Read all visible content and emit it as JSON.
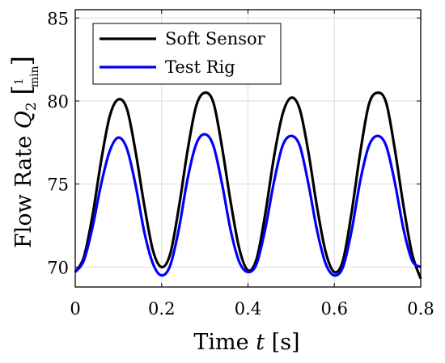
{
  "chart_data": {
    "type": "line",
    "title": "",
    "xlabel": "Time t [s]",
    "ylabel": "Flow Rate Q2 [l/min]",
    "xlim": [
      0,
      0.8
    ],
    "ylim": [
      68.8,
      85.5
    ],
    "xticks": [
      0,
      0.2,
      0.4,
      0.6,
      0.8
    ],
    "xtick_labels": [
      "0",
      "0.2",
      "0.4",
      "0.6",
      "0.8"
    ],
    "yticks": [
      70,
      75,
      80,
      85
    ],
    "ytick_labels": [
      "70",
      "75",
      "80",
      "85"
    ],
    "grid": true,
    "legend_position": "top-left",
    "series": [
      {
        "name": "Soft Sensor",
        "color": "#000000",
        "x": [
          0,
          0.02,
          0.04,
          0.06,
          0.08,
          0.1,
          0.12,
          0.14,
          0.16,
          0.18,
          0.2,
          0.22,
          0.24,
          0.26,
          0.28,
          0.3,
          0.32,
          0.34,
          0.36,
          0.38,
          0.4,
          0.42,
          0.44,
          0.46,
          0.48,
          0.5,
          0.52,
          0.54,
          0.56,
          0.58,
          0.6,
          0.62,
          0.64,
          0.66,
          0.68,
          0.7,
          0.72,
          0.74,
          0.76,
          0.78,
          0.8
        ],
        "y": [
          69.7,
          70.6,
          73.1,
          76.4,
          79.1,
          80.1,
          79.5,
          76.9,
          73.7,
          71.0,
          70.0,
          70.8,
          73.6,
          77.0,
          79.7,
          80.5,
          79.9,
          77.2,
          73.9,
          71.1,
          69.8,
          70.5,
          73.2,
          76.6,
          79.2,
          80.2,
          79.5,
          76.9,
          73.6,
          70.9,
          69.7,
          70.4,
          73.3,
          76.9,
          79.8,
          80.5,
          79.9,
          77.1,
          73.7,
          70.8,
          69.3
        ]
      },
      {
        "name": "Test Rig",
        "color": "#0000ff",
        "x": [
          0,
          0.02,
          0.04,
          0.06,
          0.08,
          0.1,
          0.12,
          0.14,
          0.16,
          0.18,
          0.2,
          0.22,
          0.24,
          0.26,
          0.28,
          0.3,
          0.32,
          0.34,
          0.36,
          0.38,
          0.4,
          0.42,
          0.44,
          0.46,
          0.48,
          0.5,
          0.52,
          0.54,
          0.56,
          0.58,
          0.6,
          0.62,
          0.64,
          0.66,
          0.68,
          0.7,
          0.72,
          0.74,
          0.76,
          0.78,
          0.8
        ],
        "y": [
          69.7,
          70.4,
          72.4,
          75.0,
          77.0,
          77.8,
          77.1,
          74.9,
          72.1,
          70.2,
          69.5,
          70.1,
          72.3,
          75.3,
          77.4,
          78.0,
          77.3,
          75.0,
          72.2,
          70.3,
          69.7,
          70.2,
          72.3,
          75.1,
          77.3,
          77.9,
          77.3,
          75.0,
          72.2,
          70.2,
          69.5,
          70.0,
          72.2,
          75.2,
          77.3,
          77.9,
          77.3,
          75.1,
          72.3,
          70.4,
          70.0
        ]
      }
    ]
  }
}
